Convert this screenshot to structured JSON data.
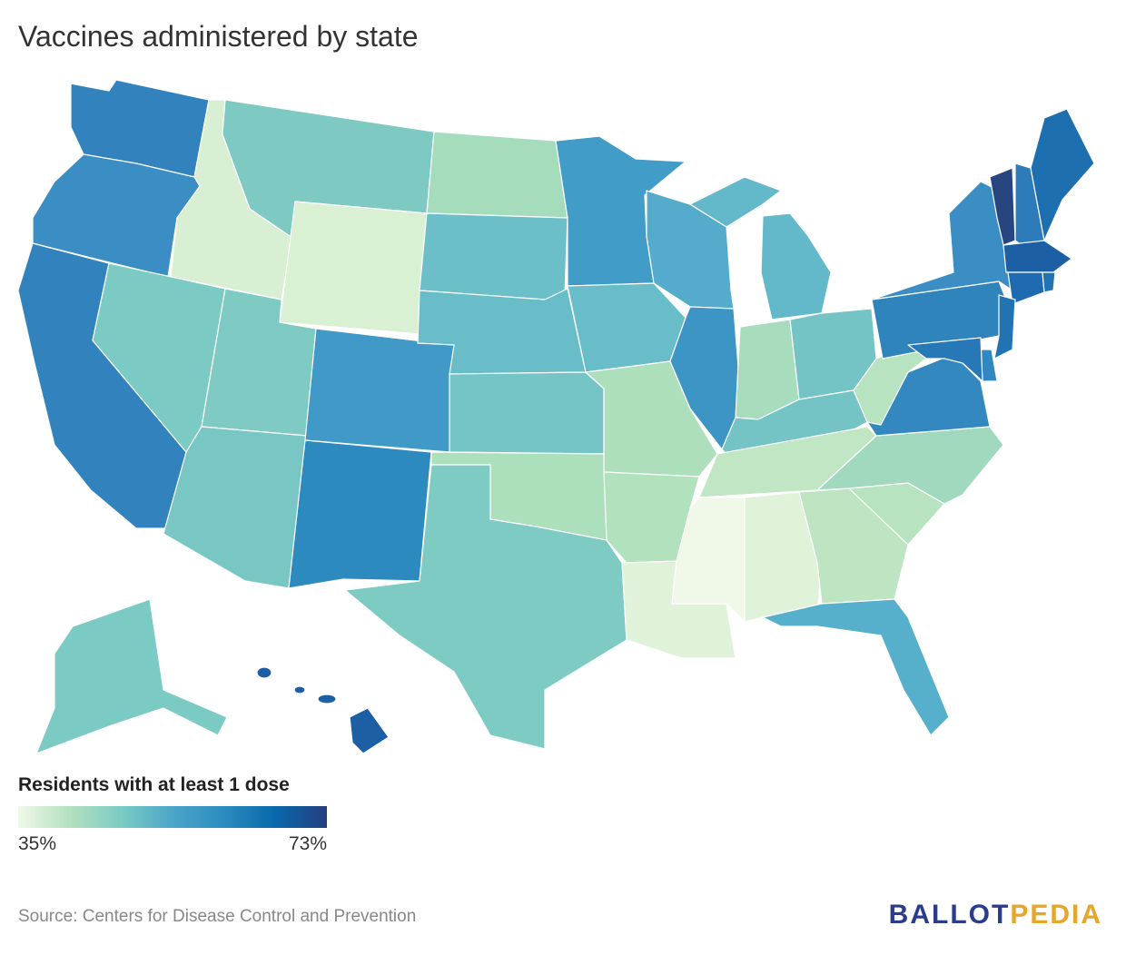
{
  "title": "Vaccines administered by state",
  "legend": {
    "title": "Residents with at least 1 dose",
    "min_label": "35%",
    "max_label": "73%",
    "min_value": 35,
    "max_value": 73,
    "gradient_colors": [
      "#f0f9e8",
      "#b3e0c0",
      "#7bccc4",
      "#4ba5c9",
      "#2b8cbe",
      "#0868ac",
      "#253e7f"
    ]
  },
  "source": "Source: Centers for Disease Control and Prevention",
  "brand": {
    "part1": "BALLOT",
    "part2": "PEDIA",
    "color1": "#2b3c8f",
    "color2": "#e5a62b"
  },
  "states": [
    {
      "name": "WA",
      "color": "#3182bd"
    },
    {
      "name": "OR",
      "color": "#3b8ec3"
    },
    {
      "name": "CA",
      "color": "#3182bd"
    },
    {
      "name": "ID",
      "color": "#d8efd3"
    },
    {
      "name": "NV",
      "color": "#7ccac4"
    },
    {
      "name": "MT",
      "color": "#7ecac3"
    },
    {
      "name": "WY",
      "color": "#d9f0d3"
    },
    {
      "name": "UT",
      "color": "#7fcbc3"
    },
    {
      "name": "AZ",
      "color": "#79c7c5"
    },
    {
      "name": "CO",
      "color": "#4199c7"
    },
    {
      "name": "NM",
      "color": "#2d8abe"
    },
    {
      "name": "ND",
      "color": "#a5dcbc"
    },
    {
      "name": "SD",
      "color": "#6cbfc8"
    },
    {
      "name": "NE",
      "color": "#68bdc9"
    },
    {
      "name": "KS",
      "color": "#75c5c6"
    },
    {
      "name": "OK",
      "color": "#ace0bc"
    },
    {
      "name": "TX",
      "color": "#7ecbc4"
    },
    {
      "name": "MN",
      "color": "#419cc8"
    },
    {
      "name": "IA",
      "color": "#69bdc8"
    },
    {
      "name": "MO",
      "color": "#addfbc"
    },
    {
      "name": "AR",
      "color": "#b1e2bd"
    },
    {
      "name": "LA",
      "color": "#e0f3da"
    },
    {
      "name": "WI",
      "color": "#54abcc"
    },
    {
      "name": "IL",
      "color": "#3c95c5"
    },
    {
      "name": "MI",
      "color": "#63b8ca"
    },
    {
      "name": "IN",
      "color": "#a7ddbc"
    },
    {
      "name": "OH",
      "color": "#74c4c6"
    },
    {
      "name": "KY",
      "color": "#74c4c6"
    },
    {
      "name": "TN",
      "color": "#c0e6c4"
    },
    {
      "name": "MS",
      "color": "#f0f9e8"
    },
    {
      "name": "AL",
      "color": "#e0f3da"
    },
    {
      "name": "GA",
      "color": "#bde5c2"
    },
    {
      "name": "FL",
      "color": "#57b0cb"
    },
    {
      "name": "SC",
      "color": "#b8e3c0"
    },
    {
      "name": "NC",
      "color": "#a0d9bd"
    },
    {
      "name": "VA",
      "color": "#3389bf"
    },
    {
      "name": "WV",
      "color": "#b8e3c0"
    },
    {
      "name": "PA",
      "color": "#2f84bc"
    },
    {
      "name": "NY",
      "color": "#3b8ec3"
    },
    {
      "name": "VT",
      "color": "#27467f"
    },
    {
      "name": "NH",
      "color": "#2d7bb8"
    },
    {
      "name": "ME",
      "color": "#1e6fb0"
    },
    {
      "name": "MA",
      "color": "#1d5fa5"
    },
    {
      "name": "CT",
      "color": "#1f6ab0"
    },
    {
      "name": "RI",
      "color": "#2273b2"
    },
    {
      "name": "NJ",
      "color": "#2273b2"
    },
    {
      "name": "DE",
      "color": "#3188c0"
    },
    {
      "name": "MD",
      "color": "#2679b6"
    },
    {
      "name": "AK",
      "color": "#7ccac4"
    },
    {
      "name": "HI",
      "color": "#1d5fa5"
    }
  ]
}
